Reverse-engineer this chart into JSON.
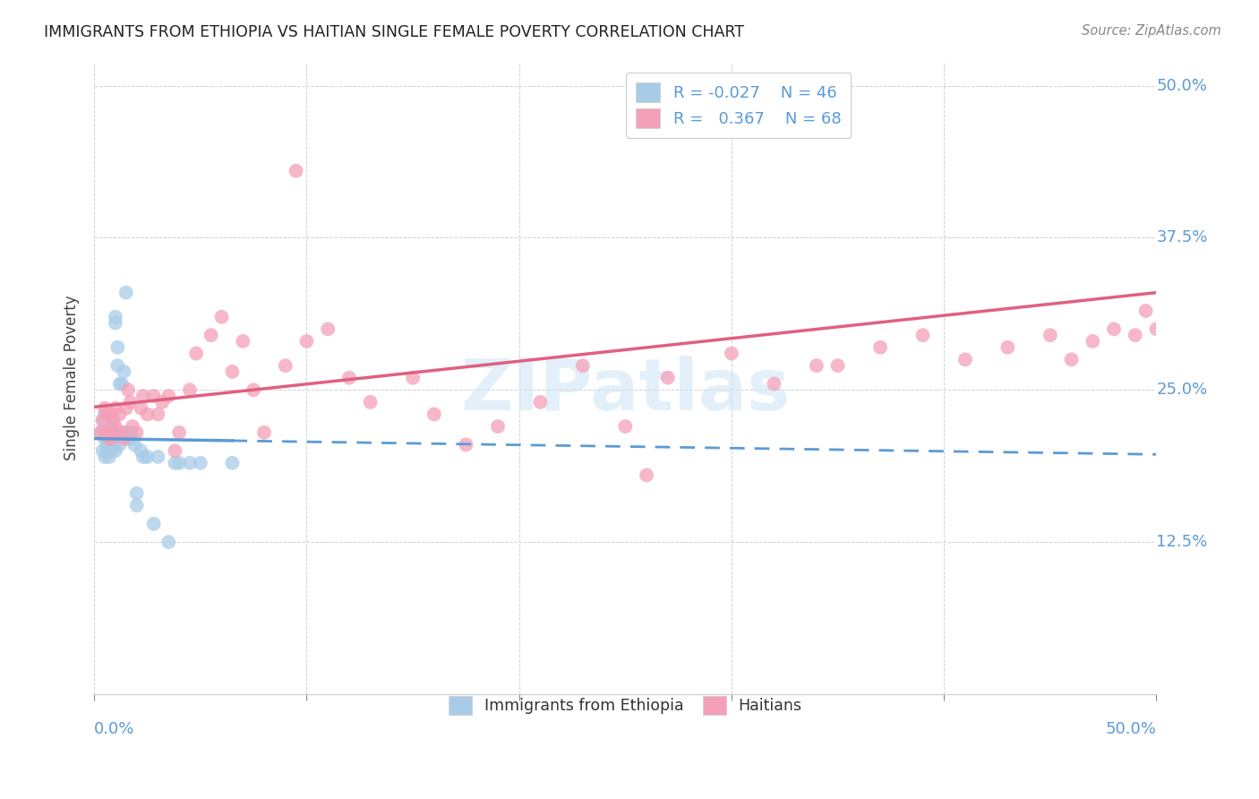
{
  "title": "IMMIGRANTS FROM ETHIOPIA VS HAITIAN SINGLE FEMALE POVERTY CORRELATION CHART",
  "source": "Source: ZipAtlas.com",
  "ylabel": "Single Female Poverty",
  "xlim": [
    0.0,
    0.5
  ],
  "ylim": [
    0.0,
    0.52
  ],
  "ethiopia_color": "#a8cce8",
  "haitian_color": "#f4a0b8",
  "ethiopia_line_color": "#5b9bd5",
  "haitian_line_color": "#e06080",
  "background_color": "#ffffff",
  "watermark": "ZIPatlas",
  "ethiopia_x": [
    0.003,
    0.004,
    0.004,
    0.005,
    0.005,
    0.005,
    0.006,
    0.006,
    0.007,
    0.007,
    0.007,
    0.008,
    0.008,
    0.008,
    0.009,
    0.009,
    0.01,
    0.01,
    0.01,
    0.011,
    0.011,
    0.012,
    0.012,
    0.013,
    0.013,
    0.014,
    0.014,
    0.015,
    0.016,
    0.016,
    0.017,
    0.018,
    0.019,
    0.02,
    0.02,
    0.022,
    0.023,
    0.025,
    0.028,
    0.03,
    0.035,
    0.038,
    0.04,
    0.045,
    0.05,
    0.065
  ],
  "ethiopia_y": [
    0.215,
    0.225,
    0.2,
    0.23,
    0.21,
    0.195,
    0.205,
    0.2,
    0.215,
    0.205,
    0.195,
    0.22,
    0.21,
    0.2,
    0.215,
    0.205,
    0.31,
    0.305,
    0.2,
    0.285,
    0.27,
    0.205,
    0.255,
    0.215,
    0.255,
    0.265,
    0.215,
    0.33,
    0.215,
    0.21,
    0.215,
    0.21,
    0.205,
    0.165,
    0.155,
    0.2,
    0.195,
    0.195,
    0.14,
    0.195,
    0.125,
    0.19,
    0.19,
    0.19,
    0.19,
    0.19
  ],
  "haitian_x": [
    0.003,
    0.004,
    0.005,
    0.005,
    0.006,
    0.007,
    0.007,
    0.008,
    0.008,
    0.009,
    0.01,
    0.01,
    0.011,
    0.012,
    0.013,
    0.014,
    0.015,
    0.016,
    0.017,
    0.018,
    0.02,
    0.022,
    0.023,
    0.025,
    0.028,
    0.03,
    0.032,
    0.035,
    0.038,
    0.04,
    0.045,
    0.048,
    0.055,
    0.06,
    0.065,
    0.07,
    0.075,
    0.08,
    0.09,
    0.095,
    0.1,
    0.11,
    0.12,
    0.13,
    0.15,
    0.16,
    0.175,
    0.19,
    0.21,
    0.23,
    0.25,
    0.27,
    0.3,
    0.32,
    0.34,
    0.37,
    0.39,
    0.41,
    0.43,
    0.45,
    0.46,
    0.47,
    0.48,
    0.49,
    0.495,
    0.5,
    0.35,
    0.26
  ],
  "haitian_y": [
    0.215,
    0.225,
    0.235,
    0.215,
    0.23,
    0.215,
    0.21,
    0.23,
    0.21,
    0.225,
    0.235,
    0.22,
    0.215,
    0.23,
    0.215,
    0.21,
    0.235,
    0.25,
    0.24,
    0.22,
    0.215,
    0.235,
    0.245,
    0.23,
    0.245,
    0.23,
    0.24,
    0.245,
    0.2,
    0.215,
    0.25,
    0.28,
    0.295,
    0.31,
    0.265,
    0.29,
    0.25,
    0.215,
    0.27,
    0.43,
    0.29,
    0.3,
    0.26,
    0.24,
    0.26,
    0.23,
    0.205,
    0.22,
    0.24,
    0.27,
    0.22,
    0.26,
    0.28,
    0.255,
    0.27,
    0.285,
    0.295,
    0.275,
    0.285,
    0.295,
    0.275,
    0.29,
    0.3,
    0.295,
    0.315,
    0.3,
    0.27,
    0.18
  ],
  "eth_trend_start_y": 0.21,
  "eth_trend_end_y": 0.197,
  "hai_trend_start_y": 0.236,
  "hai_trend_end_y": 0.33
}
